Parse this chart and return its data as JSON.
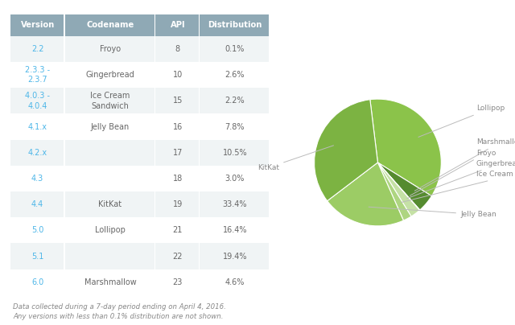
{
  "table_headers": [
    "Version",
    "Codename",
    "API",
    "Distribution"
  ],
  "table_rows": [
    [
      "2.2",
      "Froyo",
      "8",
      "0.1%"
    ],
    [
      "2.3.3 -\n2.3.7",
      "Gingerbread",
      "10",
      "2.6%"
    ],
    [
      "4.0.3 -\n4.0.4",
      "Ice Cream\nSandwich",
      "15",
      "2.2%"
    ],
    [
      "4.1.x",
      "Jelly Bean",
      "16",
      "7.8%"
    ],
    [
      "4.2.x",
      "",
      "17",
      "10.5%"
    ],
    [
      "4.3",
      "",
      "18",
      "3.0%"
    ],
    [
      "4.4",
      "KitKat",
      "19",
      "33.4%"
    ],
    [
      "5.0",
      "Lollipop",
      "21",
      "16.4%"
    ],
    [
      "5.1",
      "",
      "22",
      "19.4%"
    ],
    [
      "6.0",
      "Marshmallow",
      "23",
      "4.6%"
    ]
  ],
  "version_color": "#4db6e8",
  "header_bg": "#8fa9b5",
  "row_bg_odd": "#f0f4f5",
  "row_bg_even": "#ffffff",
  "header_text_color": "#ffffff",
  "body_text_color": "#666666",
  "footnote": "Data collected during a 7-day period ending on April 4, 2016.\nAny versions with less than 0.1% distribution are not shown.",
  "pie_labels": [
    "Lollipop",
    "Marshmallow",
    "Froyo",
    "Gingerbread",
    "Ice Cream Sandwich",
    "Jelly Bean",
    "KitKat"
  ],
  "pie_values": [
    35.8,
    4.6,
    0.1,
    2.6,
    2.2,
    21.3,
    33.4
  ],
  "pie_colors": [
    "#8bc34a",
    "#558b2f",
    "#dce775",
    "#c5e1a5",
    "#aed581",
    "#9ccc65",
    "#7cb342"
  ],
  "pie_label_color": "#888888",
  "background_color": "#ffffff",
  "pie_startangle": 97
}
